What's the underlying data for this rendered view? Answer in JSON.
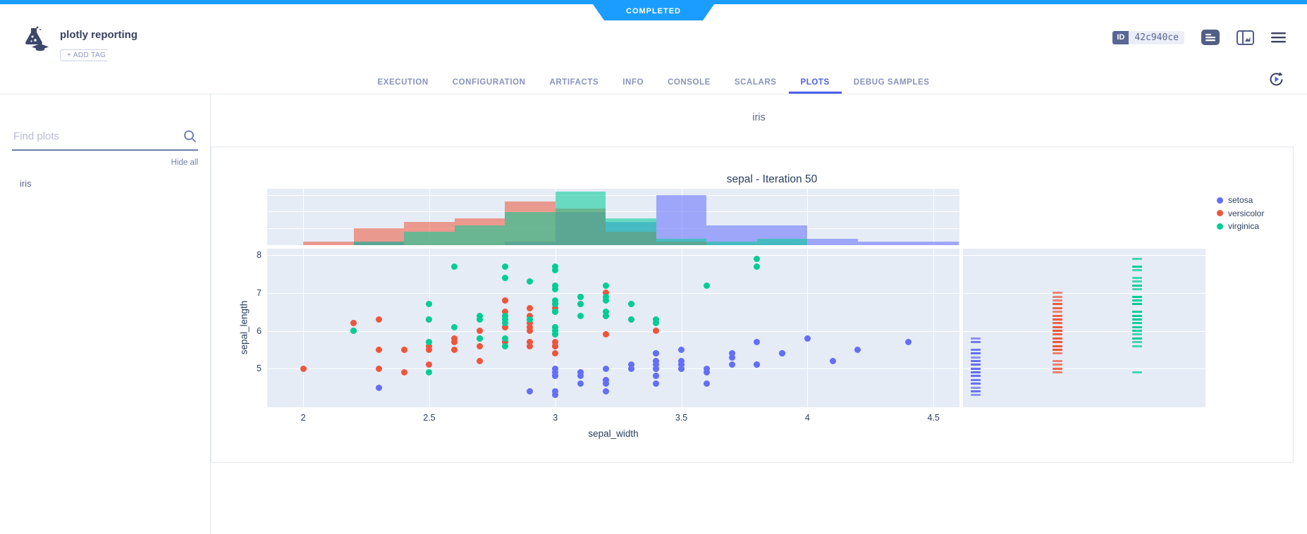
{
  "status_ribbon": {
    "label": "COMPLETED",
    "color": "#1a9dff"
  },
  "header": {
    "title": "plotly reporting",
    "add_tag_label": "+ ADD TAG",
    "id_label": "ID",
    "id_value": "42c940ce",
    "tabs": [
      {
        "label": "EXECUTION",
        "active": false
      },
      {
        "label": "CONFIGURATION",
        "active": false
      },
      {
        "label": "ARTIFACTS",
        "active": false
      },
      {
        "label": "INFO",
        "active": false
      },
      {
        "label": "CONSOLE",
        "active": false
      },
      {
        "label": "SCALARS",
        "active": false
      },
      {
        "label": "PLOTS",
        "active": true
      },
      {
        "label": "DEBUG SAMPLES",
        "active": false
      }
    ],
    "tab_active_color": "#4c5fe6"
  },
  "sidebar": {
    "search_placeholder": "Find plots",
    "hide_all_label": "Hide all",
    "items": [
      {
        "label": "iris"
      }
    ]
  },
  "main": {
    "group_title": "iris"
  },
  "chart_data": {
    "type": "scatter",
    "title": "sepal - Iteration 50",
    "xlabel": "sepal_width",
    "ylabel": "sepal_length",
    "xlim": [
      1.857,
      4.603
    ],
    "ylim": [
      3.98,
      8.17
    ],
    "x_ticks": [
      2,
      2.5,
      3,
      3.5,
      4,
      4.5
    ],
    "y_ticks": [
      8,
      7,
      6,
      5
    ],
    "grid": true,
    "plot_bg": "#e5ecf6",
    "legend_position": "right",
    "marginal_x": "histogram",
    "marginal_y": "rug",
    "hist_bin_width": 0.2,
    "hist_ymax": 16.84,
    "hist_gridline_counts": [
      5,
      10,
      15
    ],
    "series": [
      {
        "name": "setosa",
        "color": "#636EFA",
        "x": [
          3.5,
          3.0,
          3.2,
          3.1,
          3.6,
          3.9,
          3.4,
          3.4,
          2.9,
          3.1,
          3.7,
          3.4,
          3.0,
          3.0,
          4.0,
          4.4,
          3.9,
          3.5,
          3.8,
          3.8,
          3.4,
          3.7,
          3.6,
          3.3,
          3.4,
          3.0,
          3.4,
          3.5,
          3.4,
          3.2,
          3.1,
          3.4,
          4.1,
          4.2,
          3.1,
          3.2,
          3.5,
          3.6,
          3.0,
          3.4,
          3.5,
          2.3,
          3.2,
          3.5,
          3.8,
          3.0,
          3.8,
          3.2,
          3.7,
          3.3
        ],
        "y": [
          5.1,
          4.9,
          4.7,
          4.6,
          5.0,
          5.4,
          4.6,
          5.0,
          4.4,
          4.9,
          5.4,
          4.8,
          4.8,
          4.3,
          5.8,
          5.7,
          5.4,
          5.1,
          5.7,
          5.1,
          5.4,
          5.1,
          4.6,
          5.1,
          4.8,
          5.0,
          5.0,
          5.2,
          5.2,
          4.7,
          4.8,
          5.4,
          5.2,
          5.5,
          4.9,
          5.0,
          5.5,
          4.9,
          4.4,
          5.1,
          5.0,
          4.5,
          4.4,
          5.0,
          5.1,
          4.8,
          5.1,
          4.6,
          5.3,
          5.0
        ],
        "hist_bins": [
          [
            2.2,
            1
          ],
          [
            2.8,
            1
          ],
          [
            3.0,
            10
          ],
          [
            3.2,
            7
          ],
          [
            3.4,
            15
          ],
          [
            3.6,
            6
          ],
          [
            3.8,
            6
          ],
          [
            4.0,
            2
          ],
          [
            4.2,
            1
          ],
          [
            4.4,
            1
          ]
        ]
      },
      {
        "name": "versicolor",
        "color": "#EF553B",
        "x": [
          3.2,
          3.2,
          3.1,
          2.3,
          2.8,
          2.8,
          3.3,
          2.4,
          2.9,
          2.7,
          2.0,
          3.0,
          2.2,
          2.9,
          2.9,
          3.1,
          3.0,
          2.7,
          2.2,
          2.5,
          3.2,
          2.8,
          2.5,
          2.8,
          2.9,
          3.0,
          2.8,
          3.0,
          2.9,
          2.6,
          2.4,
          2.4,
          2.7,
          2.7,
          3.0,
          3.4,
          3.1,
          2.3,
          3.0,
          2.5,
          2.6,
          3.0,
          2.6,
          2.3,
          2.7,
          3.0,
          2.9,
          2.9,
          2.5,
          2.8
        ],
        "y": [
          7.0,
          6.4,
          6.9,
          5.5,
          6.5,
          5.7,
          6.3,
          4.9,
          6.6,
          5.2,
          5.0,
          5.9,
          6.0,
          6.1,
          5.6,
          6.7,
          5.6,
          5.8,
          6.2,
          5.6,
          5.9,
          6.1,
          6.3,
          6.1,
          6.4,
          6.6,
          6.8,
          6.7,
          6.0,
          5.7,
          5.5,
          5.5,
          5.8,
          6.0,
          5.4,
          6.0,
          6.7,
          6.3,
          5.6,
          5.5,
          5.5,
          6.1,
          5.8,
          5.0,
          5.6,
          5.7,
          5.7,
          6.2,
          5.1,
          5.7
        ],
        "hist_bins": [
          [
            2.0,
            1
          ],
          [
            2.2,
            5
          ],
          [
            2.4,
            7
          ],
          [
            2.6,
            8
          ],
          [
            2.8,
            13
          ],
          [
            3.0,
            11
          ],
          [
            3.2,
            4
          ],
          [
            3.4,
            1
          ]
        ]
      },
      {
        "name": "virginica",
        "color": "#00CC96",
        "x": [
          3.3,
          2.7,
          3.0,
          2.9,
          3.0,
          3.0,
          2.5,
          2.9,
          2.5,
          3.6,
          3.2,
          2.7,
          3.0,
          2.5,
          2.8,
          3.2,
          3.0,
          3.8,
          2.6,
          2.2,
          3.2,
          2.8,
          2.8,
          2.7,
          3.3,
          3.2,
          2.8,
          3.0,
          2.8,
          3.0,
          2.8,
          3.8,
          2.8,
          2.8,
          2.6,
          3.0,
          3.4,
          3.1,
          3.0,
          3.1,
          3.1,
          3.1,
          2.7,
          3.2,
          3.3,
          3.0,
          2.5,
          3.0,
          3.4,
          3.0
        ],
        "y": [
          6.3,
          5.8,
          7.1,
          6.3,
          6.5,
          7.6,
          4.9,
          7.3,
          6.7,
          7.2,
          6.5,
          6.4,
          6.8,
          5.7,
          5.8,
          6.4,
          6.5,
          7.7,
          7.7,
          6.0,
          6.9,
          5.6,
          7.7,
          6.3,
          6.7,
          7.2,
          6.2,
          6.1,
          6.4,
          7.2,
          7.4,
          7.9,
          6.4,
          6.3,
          6.1,
          7.7,
          6.3,
          6.4,
          6.0,
          6.9,
          6.7,
          6.9,
          5.8,
          6.8,
          6.7,
          6.7,
          6.3,
          6.5,
          6.2,
          5.9
        ],
        "hist_bins": [
          [
            2.2,
            1
          ],
          [
            2.4,
            4
          ],
          [
            2.6,
            6
          ],
          [
            2.8,
            10
          ],
          [
            3.0,
            16
          ],
          [
            3.2,
            8
          ],
          [
            3.4,
            2
          ],
          [
            3.6,
            1
          ],
          [
            3.8,
            2
          ]
        ]
      }
    ]
  }
}
